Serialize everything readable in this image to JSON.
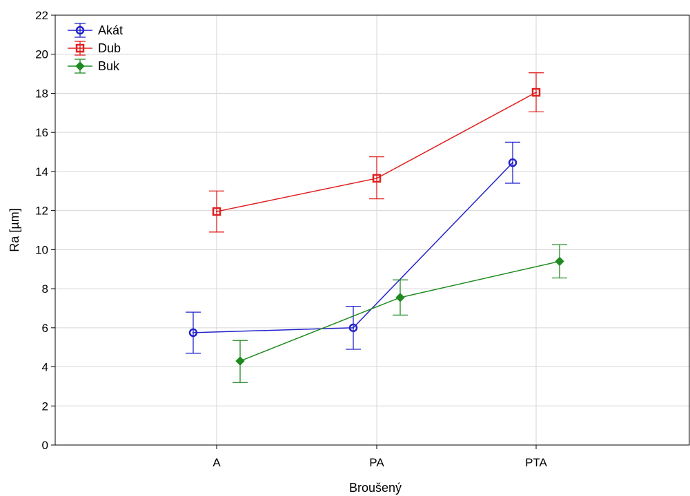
{
  "chart_data": {
    "type": "line",
    "title": "",
    "xlabel": "Broušený",
    "ylabel": "Ra [µm]",
    "categories": [
      "A",
      "PA",
      "PTA"
    ],
    "ylim": [
      0,
      22
    ],
    "yticks": [
      0,
      2,
      4,
      6,
      8,
      10,
      12,
      14,
      16,
      18,
      20,
      22
    ],
    "grid": true,
    "legend_position": "top-left",
    "series": [
      {
        "name": "Akát",
        "color": "#2222cc",
        "marker": "circle",
        "values": [
          5.75,
          6.0,
          14.45
        ],
        "lower": [
          4.7,
          4.9,
          13.4
        ],
        "upper": [
          6.8,
          7.1,
          15.5
        ]
      },
      {
        "name": "Dub",
        "color": "#e02020",
        "marker": "square",
        "values": [
          11.95,
          13.65,
          18.05
        ],
        "lower": [
          10.9,
          12.6,
          17.05
        ],
        "upper": [
          13.0,
          14.75,
          19.05
        ]
      },
      {
        "name": "Buk",
        "color": "#1f8a1f",
        "marker": "diamond",
        "values": [
          4.3,
          7.55,
          9.4
        ],
        "lower": [
          3.2,
          6.65,
          8.55
        ],
        "upper": [
          5.35,
          8.45,
          10.25
        ]
      }
    ]
  }
}
